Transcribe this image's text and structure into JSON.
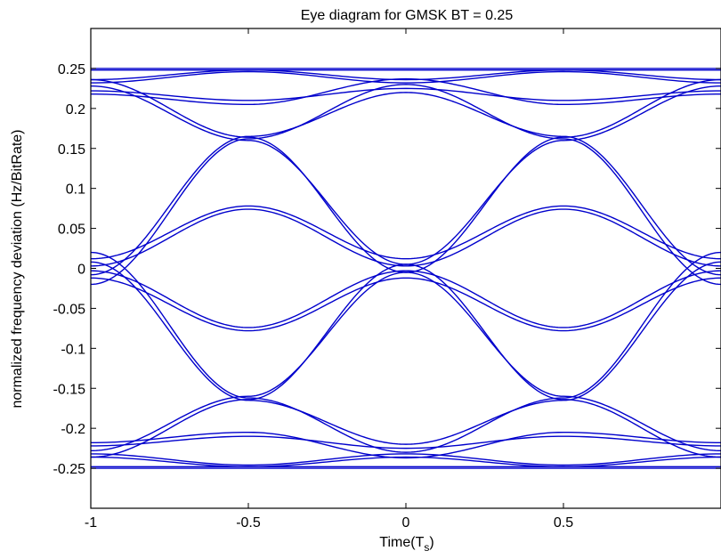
{
  "chart_data": {
    "type": "line",
    "title": "Eye diagram for GMSK BT = 0.25",
    "xlabel": "Time(T",
    "xlabel_subscript": "s",
    "xlabel_close": ")",
    "ylabel": "normalized frequency deviation (Hz/BitRate)",
    "xlim": [
      -1,
      1
    ],
    "ylim": [
      -0.3,
      0.3
    ],
    "xticks": [
      -1,
      -0.5,
      0,
      0.5
    ],
    "xtick_labels": [
      "-1",
      "-0.5",
      "0",
      "0.5"
    ],
    "yticks": [
      0.25,
      0.2,
      0.15,
      0.1,
      0.05,
      0,
      -0.05,
      -0.1,
      -0.15,
      -0.2,
      -0.25
    ],
    "ytick_labels": [
      "0.25",
      "0.2",
      "0.15",
      "0.1",
      "0.05",
      "0",
      "-0.05",
      "-0.1",
      "-0.15",
      "-0.2",
      "-0.25"
    ],
    "grid": false,
    "trace_color": "#0000cc",
    "series": [
      {
        "x": [
          -1,
          0,
          1
        ],
        "y": [
          0.25,
          0.25,
          0.25
        ]
      },
      {
        "x": [
          -1,
          0,
          1
        ],
        "y": [
          0.248,
          0.248,
          0.248
        ]
      },
      {
        "x": [
          -1,
          0,
          1
        ],
        "y": [
          -0.25,
          -0.25,
          -0.25
        ]
      },
      {
        "x": [
          -1,
          0,
          1
        ],
        "y": [
          -0.248,
          -0.248,
          -0.248
        ]
      },
      {
        "x": [
          -1,
          -0.5,
          0,
          0.5,
          1
        ],
        "y": [
          0.236,
          0.248,
          0.236,
          0.248,
          0.236
        ]
      },
      {
        "x": [
          -1,
          -0.5,
          0,
          0.5,
          1
        ],
        "y": [
          0.232,
          0.246,
          0.232,
          0.246,
          0.232
        ]
      },
      {
        "x": [
          -1,
          -0.5,
          0,
          0.5,
          1
        ],
        "y": [
          -0.236,
          -0.248,
          -0.236,
          -0.248,
          -0.236
        ]
      },
      {
        "x": [
          -1,
          -0.5,
          0,
          0.5,
          1
        ],
        "y": [
          -0.232,
          -0.246,
          -0.232,
          -0.246,
          -0.232
        ]
      },
      {
        "x": [
          -1,
          -0.5,
          0,
          0.5,
          1
        ],
        "y": [
          0.218,
          0.205,
          0.237,
          0.205,
          0.218
        ]
      },
      {
        "x": [
          -1,
          -0.5,
          0,
          0.5,
          1
        ],
        "y": [
          0.222,
          0.21,
          0.225,
          0.21,
          0.222
        ]
      },
      {
        "x": [
          -1,
          -0.5,
          0,
          0.5,
          1
        ],
        "y": [
          -0.218,
          -0.205,
          -0.237,
          -0.205,
          -0.218
        ]
      },
      {
        "x": [
          -1,
          -0.5,
          0,
          0.5,
          1
        ],
        "y": [
          -0.222,
          -0.21,
          -0.225,
          -0.21,
          -0.222
        ]
      },
      {
        "x": [
          -1,
          -0.5,
          0
        ],
        "y": [
          0.236,
          0.164,
          -0.005
        ]
      },
      {
        "x": [
          -1,
          -0.5,
          0
        ],
        "y": [
          0.228,
          0.16,
          0.005
        ]
      },
      {
        "x": [
          -1,
          -0.5,
          0
        ],
        "y": [
          -0.236,
          -0.164,
          0.005
        ]
      },
      {
        "x": [
          -1,
          -0.5,
          0
        ],
        "y": [
          -0.228,
          -0.16,
          -0.005
        ]
      },
      {
        "x": [
          0,
          0.5,
          1
        ],
        "y": [
          -0.005,
          0.164,
          0.236
        ]
      },
      {
        "x": [
          0,
          0.5,
          1
        ],
        "y": [
          0.005,
          0.16,
          0.228
        ]
      },
      {
        "x": [
          0,
          0.5,
          1
        ],
        "y": [
          0.005,
          -0.164,
          -0.236
        ]
      },
      {
        "x": [
          0,
          0.5,
          1
        ],
        "y": [
          -0.005,
          -0.16,
          -0.228
        ]
      },
      {
        "x": [
          -1,
          -0.5,
          0
        ],
        "y": [
          0.012,
          0.078,
          0.012
        ]
      },
      {
        "x": [
          -1,
          -0.5,
          0
        ],
        "y": [
          0.003,
          0.074,
          0.003
        ]
      },
      {
        "x": [
          -1,
          -0.5,
          0
        ],
        "y": [
          -0.012,
          -0.078,
          -0.012
        ]
      },
      {
        "x": [
          -1,
          -0.5,
          0
        ],
        "y": [
          -0.003,
          -0.074,
          -0.003
        ]
      },
      {
        "x": [
          0,
          0.5,
          1
        ],
        "y": [
          0.012,
          0.078,
          0.012
        ]
      },
      {
        "x": [
          0,
          0.5,
          1
        ],
        "y": [
          0.003,
          0.074,
          0.003
        ]
      },
      {
        "x": [
          0,
          0.5,
          1
        ],
        "y": [
          -0.012,
          -0.078,
          -0.012
        ]
      },
      {
        "x": [
          0,
          0.5,
          1
        ],
        "y": [
          -0.003,
          -0.074,
          -0.003
        ]
      },
      {
        "x": [
          -1,
          -0.5,
          0
        ],
        "y": [
          0.02,
          -0.162,
          -0.23
        ]
      },
      {
        "x": [
          -1,
          -0.5,
          0
        ],
        "y": [
          0.008,
          -0.165,
          -0.22
        ]
      },
      {
        "x": [
          -1,
          -0.5,
          0
        ],
        "y": [
          -0.02,
          0.162,
          0.23
        ]
      },
      {
        "x": [
          -1,
          -0.5,
          0
        ],
        "y": [
          -0.008,
          0.165,
          0.22
        ]
      },
      {
        "x": [
          0,
          0.5,
          1
        ],
        "y": [
          -0.23,
          -0.162,
          0.02
        ]
      },
      {
        "x": [
          0,
          0.5,
          1
        ],
        "y": [
          -0.22,
          -0.165,
          0.008
        ]
      },
      {
        "x": [
          0,
          0.5,
          1
        ],
        "y": [
          0.23,
          0.162,
          -0.02
        ]
      },
      {
        "x": [
          0,
          0.5,
          1
        ],
        "y": [
          0.22,
          0.165,
          -0.008
        ]
      }
    ]
  }
}
